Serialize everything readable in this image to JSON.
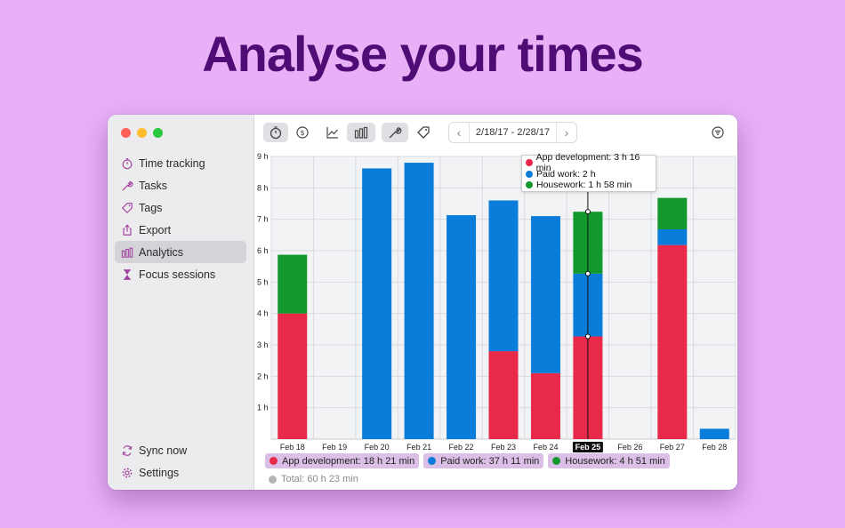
{
  "headline": "Analyse your times",
  "colors": {
    "app_development": "#e8294a",
    "paid_work": "#0a7ddb",
    "housework": "#13982e",
    "total": "#b5b5b5"
  },
  "sidebar": {
    "items": [
      {
        "label": "Time tracking",
        "icon": "stopwatch-icon",
        "active": false
      },
      {
        "label": "Tasks",
        "icon": "wrench-icon",
        "active": false
      },
      {
        "label": "Tags",
        "icon": "tag-icon",
        "active": false
      },
      {
        "label": "Export",
        "icon": "share-icon",
        "active": false
      },
      {
        "label": "Analytics",
        "icon": "bar-chart-icon",
        "active": true
      },
      {
        "label": "Focus sessions",
        "icon": "hourglass-icon",
        "active": false
      }
    ],
    "bottom_items": [
      {
        "label": "Sync now",
        "icon": "sync-icon"
      },
      {
        "label": "Settings",
        "icon": "gear-icon"
      }
    ]
  },
  "toolbar": {
    "date_range": "2/18/17 - 2/28/17"
  },
  "tooltip": {
    "rows": [
      {
        "label": "App development: 3 h 16 min",
        "series": "app_development"
      },
      {
        "label": "Paid work: 2 h",
        "series": "paid_work"
      },
      {
        "label": "Housework: 1 h 58 min",
        "series": "housework"
      }
    ]
  },
  "legend": {
    "items": [
      {
        "label": "App development: 18 h 21 min",
        "series": "app_development"
      },
      {
        "label": "Paid work: 37 h 11 min",
        "series": "paid_work"
      },
      {
        "label": "Housework: 4 h 51 min",
        "series": "housework"
      }
    ],
    "total": "Total: 60 h 23 min"
  },
  "chart_data": {
    "type": "bar",
    "stacked": true,
    "categories": [
      "Feb 18",
      "Feb 19",
      "Feb 20",
      "Feb 21",
      "Feb 22",
      "Feb 23",
      "Feb 24",
      "Feb 25",
      "Feb 26",
      "Feb 27",
      "Feb 28"
    ],
    "selected_category": "Feb 25",
    "y_ticks": [
      "1 h",
      "2 h",
      "3 h",
      "4 h",
      "5 h",
      "6 h",
      "7 h",
      "8 h",
      "9 h"
    ],
    "ylim": [
      0,
      9
    ],
    "grid": true,
    "series": [
      {
        "key": "app_development",
        "values": [
          4.0,
          0,
          0,
          0,
          0,
          2.8,
          2.1,
          3.27,
          0,
          6.18,
          0
        ]
      },
      {
        "key": "paid_work",
        "values": [
          0,
          0,
          8.62,
          8.8,
          7.13,
          4.8,
          5.0,
          2.0,
          0,
          0.5,
          0.33
        ]
      },
      {
        "key": "housework",
        "values": [
          1.87,
          0,
          0,
          0,
          0,
          0,
          0,
          1.97,
          0,
          1.0,
          0
        ]
      }
    ]
  }
}
